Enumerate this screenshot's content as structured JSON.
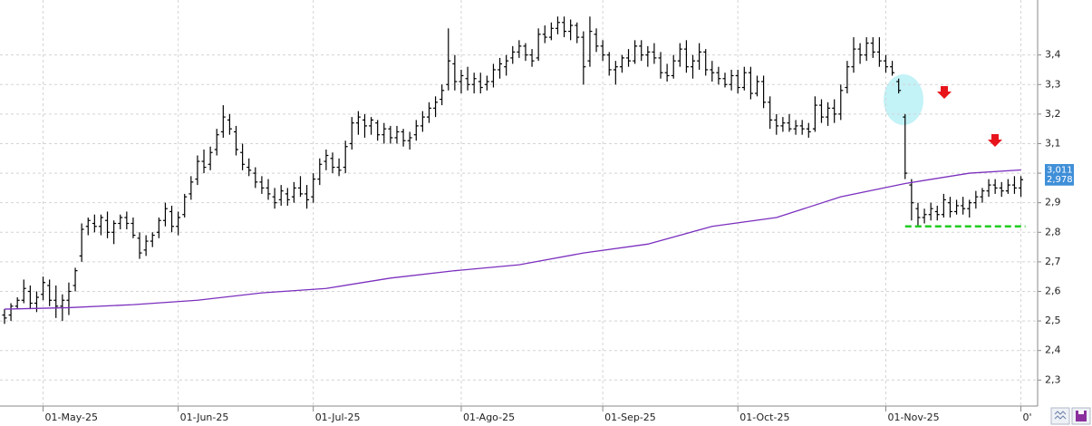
{
  "chart_data": {
    "type": "ohlc",
    "xlim": [
      -0.7,
      160.6
    ],
    "ylim": [
      2.212,
      3.586
    ],
    "xticks": [
      {
        "value": 6,
        "label": "01-May-25"
      },
      {
        "value": 27,
        "label": "01-Jun-25"
      },
      {
        "value": 48,
        "label": "01-Jul-25"
      },
      {
        "value": 71,
        "label": "01-Ago-25"
      },
      {
        "value": 93,
        "label": "01-Sep-25"
      },
      {
        "value": 114,
        "label": "01-Oct-25"
      },
      {
        "value": 137,
        "label": "01-Nov-25"
      },
      {
        "value": 158,
        "label": "0'"
      }
    ],
    "yticks": [
      {
        "value": 2.3,
        "label": "2,3"
      },
      {
        "value": 2.4,
        "label": "2,4"
      },
      {
        "value": 2.5,
        "label": "2,5"
      },
      {
        "value": 2.6,
        "label": "2,6"
      },
      {
        "value": 2.7,
        "label": "2,7"
      },
      {
        "value": 2.8,
        "label": "2,8"
      },
      {
        "value": 2.9,
        "label": "2,9"
      },
      {
        "value": 3,
        "label": "3,0"
      },
      {
        "value": 3.1,
        "label": "3,1"
      },
      {
        "value": 3.2,
        "label": "3,2"
      },
      {
        "value": 3.3,
        "label": "3,3"
      },
      {
        "value": 3.4,
        "label": "3,4"
      }
    ],
    "grid": true,
    "color": "#000000",
    "ohlc": [
      [
        2.52,
        2.54,
        2.49,
        2.51
      ],
      [
        2.52,
        2.56,
        2.5,
        2.55
      ],
      [
        2.55,
        2.58,
        2.54,
        2.57
      ],
      [
        2.57,
        2.64,
        2.56,
        2.61
      ],
      [
        2.6,
        2.62,
        2.54,
        2.56
      ],
      [
        2.56,
        2.6,
        2.53,
        2.58
      ],
      [
        2.59,
        2.65,
        2.57,
        2.63
      ],
      [
        2.62,
        2.64,
        2.55,
        2.57
      ],
      [
        2.57,
        2.62,
        2.51,
        2.55
      ],
      [
        2.55,
        2.59,
        2.5,
        2.57
      ],
      [
        2.57,
        2.63,
        2.52,
        2.6
      ],
      [
        2.62,
        2.68,
        2.6,
        2.67
      ],
      [
        2.72,
        2.83,
        2.7,
        2.81
      ],
      [
        2.82,
        2.85,
        2.79,
        2.84
      ],
      [
        2.83,
        2.86,
        2.8,
        2.82
      ],
      [
        2.82,
        2.86,
        2.79,
        2.85
      ],
      [
        2.84,
        2.87,
        2.78,
        2.8
      ],
      [
        2.8,
        2.84,
        2.76,
        2.83
      ],
      [
        2.83,
        2.86,
        2.81,
        2.85
      ],
      [
        2.85,
        2.87,
        2.81,
        2.83
      ],
      [
        2.83,
        2.85,
        2.78,
        2.79
      ],
      [
        2.78,
        2.8,
        2.71,
        2.73
      ],
      [
        2.74,
        2.79,
        2.72,
        2.77
      ],
      [
        2.77,
        2.8,
        2.75,
        2.79
      ],
      [
        2.8,
        2.85,
        2.78,
        2.84
      ],
      [
        2.84,
        2.9,
        2.82,
        2.88
      ],
      [
        2.87,
        2.89,
        2.8,
        2.82
      ],
      [
        2.82,
        2.87,
        2.79,
        2.85
      ],
      [
        2.86,
        2.93,
        2.85,
        2.92
      ],
      [
        2.93,
        2.99,
        2.91,
        2.97
      ],
      [
        2.98,
        3.06,
        2.96,
        3.04
      ],
      [
        3.04,
        3.08,
        3,
        3.02
      ],
      [
        3.03,
        3.09,
        3.01,
        3.07
      ],
      [
        3.08,
        3.15,
        3.06,
        3.13
      ],
      [
        3.14,
        3.23,
        3.12,
        3.19
      ],
      [
        3.18,
        3.2,
        3.13,
        3.15
      ],
      [
        3.14,
        3.16,
        3.06,
        3.08
      ],
      [
        3.07,
        3.1,
        3.01,
        3.03
      ],
      [
        3.02,
        3.05,
        2.99,
        3.01
      ],
      [
        3,
        3.02,
        2.95,
        2.97
      ],
      [
        2.97,
        2.99,
        2.93,
        2.95
      ],
      [
        2.95,
        2.98,
        2.91,
        2.93
      ],
      [
        2.92,
        2.95,
        2.88,
        2.9
      ],
      [
        2.91,
        2.96,
        2.89,
        2.94
      ],
      [
        2.93,
        2.95,
        2.89,
        2.91
      ],
      [
        2.92,
        2.97,
        2.9,
        2.95
      ],
      [
        2.95,
        2.99,
        2.92,
        2.93
      ],
      [
        2.93,
        2.96,
        2.88,
        2.91
      ],
      [
        2.92,
        3,
        2.9,
        2.98
      ],
      [
        2.98,
        3.05,
        2.96,
        3.03
      ],
      [
        3.04,
        3.08,
        3.01,
        3.06
      ],
      [
        3.05,
        3.07,
        3,
        3.02
      ],
      [
        3.02,
        3.05,
        2.99,
        3.01
      ],
      [
        3.02,
        3.11,
        3,
        3.09
      ],
      [
        3.1,
        3.19,
        3.08,
        3.17
      ],
      [
        3.17,
        3.21,
        3.13,
        3.19
      ],
      [
        3.18,
        3.2,
        3.12,
        3.16
      ],
      [
        3.16,
        3.19,
        3.13,
        3.18
      ],
      [
        3.17,
        3.18,
        3.11,
        3.13
      ],
      [
        3.13,
        3.17,
        3.1,
        3.15
      ],
      [
        3.15,
        3.16,
        3.1,
        3.12
      ],
      [
        3.12,
        3.16,
        3.1,
        3.14
      ],
      [
        3.14,
        3.15,
        3.09,
        3.11
      ],
      [
        3.11,
        3.14,
        3.08,
        3.12
      ],
      [
        3.13,
        3.18,
        3.11,
        3.16
      ],
      [
        3.16,
        3.21,
        3.14,
        3.19
      ],
      [
        3.19,
        3.24,
        3.17,
        3.22
      ],
      [
        3.22,
        3.26,
        3.19,
        3.24
      ],
      [
        3.25,
        3.3,
        3.23,
        3.28
      ],
      [
        3.3,
        3.49,
        3.28,
        3.38
      ],
      [
        3.37,
        3.4,
        3.28,
        3.31
      ],
      [
        3.31,
        3.35,
        3.27,
        3.33
      ],
      [
        3.32,
        3.36,
        3.28,
        3.3
      ],
      [
        3.3,
        3.34,
        3.27,
        3.32
      ],
      [
        3.31,
        3.34,
        3.27,
        3.29
      ],
      [
        3.3,
        3.33,
        3.28,
        3.31
      ],
      [
        3.31,
        3.37,
        3.29,
        3.35
      ],
      [
        3.35,
        3.39,
        3.32,
        3.37
      ],
      [
        3.36,
        3.4,
        3.33,
        3.38
      ],
      [
        3.39,
        3.43,
        3.37,
        3.41
      ],
      [
        3.41,
        3.45,
        3.39,
        3.43
      ],
      [
        3.43,
        3.44,
        3.38,
        3.4
      ],
      [
        3.4,
        3.42,
        3.36,
        3.38
      ],
      [
        3.39,
        3.49,
        3.38,
        3.47
      ],
      [
        3.47,
        3.5,
        3.44,
        3.46
      ],
      [
        3.46,
        3.51,
        3.45,
        3.49
      ],
      [
        3.49,
        3.53,
        3.47,
        3.51
      ],
      [
        3.51,
        3.53,
        3.46,
        3.48
      ],
      [
        3.48,
        3.52,
        3.45,
        3.5
      ],
      [
        3.5,
        3.51,
        3.44,
        3.46
      ],
      [
        3.46,
        3.48,
        3.3,
        3.36
      ],
      [
        3.38,
        3.53,
        3.36,
        3.48
      ],
      [
        3.47,
        3.49,
        3.41,
        3.43
      ],
      [
        3.43,
        3.45,
        3.38,
        3.4
      ],
      [
        3.4,
        3.41,
        3.33,
        3.35
      ],
      [
        3.35,
        3.38,
        3.3,
        3.36
      ],
      [
        3.36,
        3.4,
        3.34,
        3.39
      ],
      [
        3.39,
        3.42,
        3.36,
        3.38
      ],
      [
        3.38,
        3.45,
        3.37,
        3.43
      ],
      [
        3.43,
        3.45,
        3.38,
        3.4
      ],
      [
        3.4,
        3.43,
        3.36,
        3.41
      ],
      [
        3.41,
        3.44,
        3.37,
        3.39
      ],
      [
        3.39,
        3.41,
        3.32,
        3.34
      ],
      [
        3.34,
        3.37,
        3.31,
        3.33
      ],
      [
        3.33,
        3.4,
        3.32,
        3.38
      ],
      [
        3.38,
        3.44,
        3.36,
        3.42
      ],
      [
        3.42,
        3.45,
        3.34,
        3.36
      ],
      [
        3.36,
        3.4,
        3.32,
        3.38
      ],
      [
        3.38,
        3.44,
        3.35,
        3.41
      ],
      [
        3.41,
        3.42,
        3.33,
        3.35
      ],
      [
        3.35,
        3.38,
        3.31,
        3.34
      ],
      [
        3.34,
        3.36,
        3.3,
        3.32
      ],
      [
        3.32,
        3.34,
        3.29,
        3.3
      ],
      [
        3.3,
        3.35,
        3.28,
        3.33
      ],
      [
        3.33,
        3.35,
        3.27,
        3.29
      ],
      [
        3.29,
        3.36,
        3.28,
        3.34
      ],
      [
        3.34,
        3.36,
        3.25,
        3.27
      ],
      [
        3.27,
        3.33,
        3.26,
        3.31
      ],
      [
        3.31,
        3.33,
        3.22,
        3.24
      ],
      [
        3.24,
        3.26,
        3.15,
        3.18
      ],
      [
        3.18,
        3.2,
        3.13,
        3.16
      ],
      [
        3.16,
        3.19,
        3.14,
        3.17
      ],
      [
        3.17,
        3.2,
        3.14,
        3.15
      ],
      [
        3.15,
        3.18,
        3.13,
        3.16
      ],
      [
        3.16,
        3.18,
        3.13,
        3.15
      ],
      [
        3.15,
        3.17,
        3.12,
        3.14
      ],
      [
        3.15,
        3.26,
        3.14,
        3.23
      ],
      [
        3.23,
        3.25,
        3.17,
        3.19
      ],
      [
        3.19,
        3.24,
        3.16,
        3.22
      ],
      [
        3.22,
        3.25,
        3.17,
        3.2
      ],
      [
        3.2,
        3.3,
        3.18,
        3.28
      ],
      [
        3.29,
        3.38,
        3.27,
        3.36
      ],
      [
        3.36,
        3.46,
        3.34,
        3.42
      ],
      [
        3.42,
        3.44,
        3.37,
        3.4
      ],
      [
        3.4,
        3.46,
        3.38,
        3.44
      ],
      [
        3.44,
        3.46,
        3.39,
        3.41
      ],
      [
        3.41,
        3.46,
        3.36,
        3.38
      ],
      [
        3.38,
        3.4,
        3.34,
        3.36
      ],
      [
        3.36,
        3.38,
        3.33,
        3.34
      ],
      [
        3.31,
        3.32,
        3.27,
        3.28
      ],
      [
        3.19,
        3.2,
        2.98,
        3
      ],
      [
        2.96,
        2.98,
        2.84,
        2.9
      ],
      [
        2.88,
        2.9,
        2.82,
        2.85
      ],
      [
        2.85,
        2.88,
        2.83,
        2.86
      ],
      [
        2.86,
        2.9,
        2.84,
        2.88
      ],
      [
        2.87,
        2.89,
        2.84,
        2.86
      ],
      [
        2.86,
        2.93,
        2.85,
        2.91
      ],
      [
        2.9,
        2.92,
        2.85,
        2.87
      ],
      [
        2.87,
        2.91,
        2.86,
        2.89
      ],
      [
        2.89,
        2.92,
        2.86,
        2.88
      ],
      [
        2.88,
        2.91,
        2.85,
        2.9
      ],
      [
        2.9,
        2.94,
        2.88,
        2.92
      ],
      [
        2.92,
        2.95,
        2.9,
        2.94
      ],
      [
        2.94,
        2.98,
        2.92,
        2.96
      ],
      [
        2.96,
        2.98,
        2.93,
        2.95
      ],
      [
        2.95,
        2.97,
        2.92,
        2.94
      ],
      [
        2.94,
        2.98,
        2.93,
        2.96
      ],
      [
        2.96,
        2.99,
        2.93,
        2.95
      ],
      [
        2.95,
        2.99,
        2.92,
        2.978
      ]
    ],
    "series": [
      {
        "type": "line",
        "color": "#7b2fbe",
        "x": [
          0,
          10,
          20,
          30,
          40,
          50,
          60,
          70,
          80,
          90,
          100,
          110,
          120,
          130,
          140,
          150,
          158
        ],
        "values": [
          2.54,
          2.545,
          2.555,
          2.57,
          2.595,
          2.61,
          2.645,
          2.67,
          2.69,
          2.73,
          2.76,
          2.82,
          2.85,
          2.92,
          2.965,
          3.0,
          3.011
        ]
      }
    ],
    "support_line": {
      "value": 2.82,
      "x": [
        140,
        158.7
      ],
      "color": "#22cc22"
    },
    "last_labels": [
      {
        "value": 3.011,
        "label": "3,011",
        "color": "#3f8fd8"
      },
      {
        "value": 2.978,
        "label": "2,978",
        "color": "#3f8fd8"
      }
    ]
  }
}
